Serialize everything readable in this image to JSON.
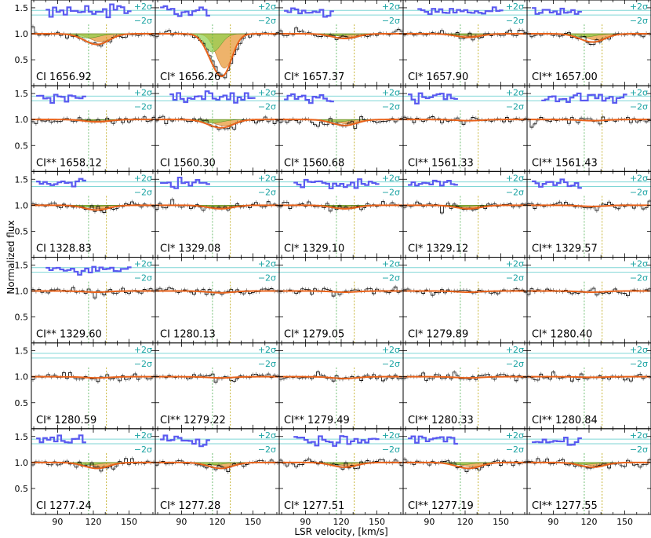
{
  "chart_data": {
    "type": "line",
    "xlabel": "LSR velocity, [km/s]",
    "ylabel": "Normalized flux",
    "xlim": [
      68,
      172
    ],
    "ylim": [
      0.0,
      1.65
    ],
    "xticks": [
      90,
      120,
      150
    ],
    "yticks": [
      0.5,
      1.0,
      1.5
    ],
    "sigma_labels": [
      "+2σ",
      "−2σ"
    ],
    "component_velocities": [
      116,
      131
    ],
    "grid": false,
    "rows": 6,
    "cols": 5,
    "panels": [
      {
        "label": "CI 1656.92",
        "depth": 0.18,
        "resid": true
      },
      {
        "label": "CI* 1656.26",
        "depth": 0.78,
        "resid": true
      },
      {
        "label": "CI* 1657.37",
        "depth": 0.08,
        "resid": true
      },
      {
        "label": "CI* 1657.90",
        "depth": 0.06,
        "resid": true
      },
      {
        "label": "CI** 1657.00",
        "depth": 0.14,
        "resid": true
      },
      {
        "label": "CI** 1658.12",
        "depth": 0.04,
        "resid": true
      },
      {
        "label": "CI 1560.30",
        "depth": 0.14,
        "resid": true
      },
      {
        "label": "CI* 1560.68",
        "depth": 0.1,
        "resid": true
      },
      {
        "label": "CI** 1561.33",
        "depth": 0.02,
        "resid": true
      },
      {
        "label": "CI** 1561.43",
        "depth": 0.02,
        "resid": true
      },
      {
        "label": "CI 1328.83",
        "depth": 0.08,
        "resid": true
      },
      {
        "label": "CI* 1329.08",
        "depth": 0.06,
        "resid": true
      },
      {
        "label": "CI* 1329.10",
        "depth": 0.06,
        "resid": true
      },
      {
        "label": "CI* 1329.12",
        "depth": 0.06,
        "resid": true
      },
      {
        "label": "CI** 1329.57",
        "depth": 0.02,
        "resid": true
      },
      {
        "label": "CI** 1329.60",
        "depth": 0.02,
        "resid": true
      },
      {
        "label": "CI 1280.13",
        "depth": 0.03,
        "resid": false
      },
      {
        "label": "CI* 1279.05",
        "depth": 0.02,
        "resid": false
      },
      {
        "label": "CI* 1279.89",
        "depth": 0.02,
        "resid": false
      },
      {
        "label": "CI* 1280.40",
        "depth": 0.02,
        "resid": false
      },
      {
        "label": "CI* 1280.59",
        "depth": 0.02,
        "resid": false
      },
      {
        "label": "CI** 1279.22",
        "depth": 0.02,
        "resid": false
      },
      {
        "label": "CI** 1279.49",
        "depth": 0.03,
        "resid": false
      },
      {
        "label": "CI** 1280.33",
        "depth": 0.02,
        "resid": false
      },
      {
        "label": "CI** 1280.84",
        "depth": 0.01,
        "resid": false
      },
      {
        "label": "CI 1277.24",
        "depth": 0.1,
        "resid": true
      },
      {
        "label": "CI* 1277.28",
        "depth": 0.1,
        "resid": true
      },
      {
        "label": "CI* 1277.51",
        "depth": 0.08,
        "resid": true
      },
      {
        "label": "CI** 1277.19",
        "depth": 0.1,
        "resid": true
      },
      {
        "label": "CI** 1277.55",
        "depth": 0.08,
        "resid": true
      }
    ],
    "colors": {
      "model": "#e8621a",
      "component_fill": "#e89a3a",
      "component2_fill": "#8fd14f",
      "residual": "#5a5af0",
      "sigma_line": "#7fd6d6",
      "component_marker": "#4caf50",
      "data": "#000000"
    }
  }
}
